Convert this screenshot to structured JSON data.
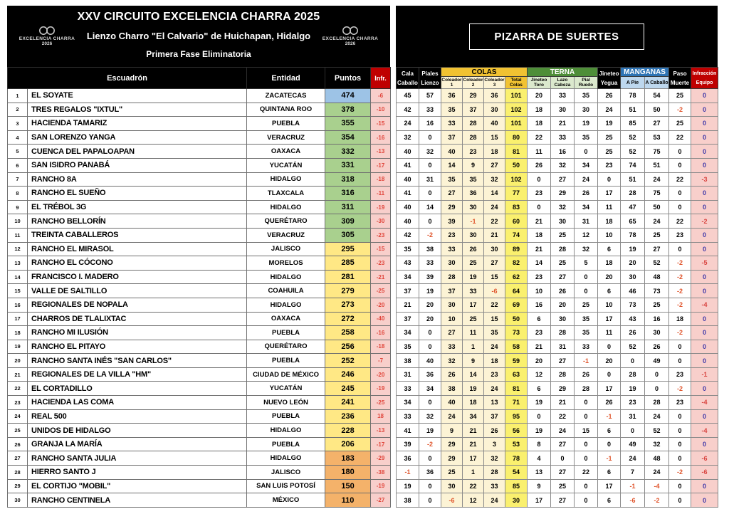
{
  "left_panel": {
    "title": "XXV CIRCUITO EXCELENCIA CHARRA 2025",
    "venue": "Lienzo Charro \"El Calvario\" de Huichapan, Hidalgo",
    "phase": "Primera Fase Eliminatoria",
    "logo": {
      "name": "EXCELENCIA CHARRA",
      "year": "2026"
    },
    "columns": {
      "squad": "Escuadrón",
      "state": "Entidad",
      "points": "Puntos",
      "infraction": "Infr."
    },
    "rows": [
      {
        "rank": 1,
        "squad": "EL SOYATE",
        "state": "ZACATECAS",
        "points": 474,
        "infr": "-6",
        "tier": "blue"
      },
      {
        "rank": 2,
        "squad": "TRES REGALOS \"IXTUL\"",
        "state": "QUINTANA ROO",
        "points": 378,
        "infr": "-10",
        "tier": "green"
      },
      {
        "rank": 3,
        "squad": "HACIENDA TAMARIZ",
        "state": "PUEBLA",
        "points": 355,
        "infr": "-15",
        "tier": "green"
      },
      {
        "rank": 4,
        "squad": "SAN LORENZO YANGA",
        "state": "VERACRUZ",
        "points": 354,
        "infr": "-16",
        "tier": "green"
      },
      {
        "rank": 5,
        "squad": "CUENCA DEL PAPALOAPAN",
        "state": "OAXACA",
        "points": 332,
        "infr": "-13",
        "tier": "green"
      },
      {
        "rank": 6,
        "squad": "SAN ISIDRO PANABÁ",
        "state": "YUCATÁN",
        "points": 331,
        "infr": "-17",
        "tier": "green"
      },
      {
        "rank": 7,
        "squad": "RANCHO 8A",
        "state": "HIDALGO",
        "points": 318,
        "infr": "-18",
        "tier": "green"
      },
      {
        "rank": 8,
        "squad": "RANCHO EL SUEÑO",
        "state": "TLAXCALA",
        "points": 316,
        "infr": "-11",
        "tier": "green"
      },
      {
        "rank": 9,
        "squad": "EL TRÉBOL 3G",
        "state": "HIDALGO",
        "points": 311,
        "infr": "-19",
        "tier": "green"
      },
      {
        "rank": 10,
        "squad": "RANCHO BELLORÍN",
        "state": "QUERÉTARO",
        "points": 309,
        "infr": "-30",
        "tier": "green"
      },
      {
        "rank": 11,
        "squad": "TREINTA CABALLEROS",
        "state": "VERACRUZ",
        "points": 305,
        "infr": "-23",
        "tier": "green"
      },
      {
        "rank": 12,
        "squad": "RANCHO EL MIRASOL",
        "state": "JALISCO",
        "points": 295,
        "infr": "-15",
        "tier": "yellow"
      },
      {
        "rank": 13,
        "squad": "RANCHO EL CÓCONO",
        "state": "MORELOS",
        "points": 285,
        "infr": "-23",
        "tier": "yellow"
      },
      {
        "rank": 14,
        "squad": "FRANCISCO I. MADERO",
        "state": "HIDALGO",
        "points": 281,
        "infr": "-21",
        "tier": "yellow"
      },
      {
        "rank": 15,
        "squad": "VALLE DE SALTILLO",
        "state": "COAHUILA",
        "points": 279,
        "infr": "-25",
        "tier": "yellow"
      },
      {
        "rank": 16,
        "squad": "REGIONALES DE NOPALA",
        "state": "HIDALGO",
        "points": 273,
        "infr": "-20",
        "tier": "yellow"
      },
      {
        "rank": 17,
        "squad": "CHARROS DE TLALIXTAC",
        "state": "OAXACA",
        "points": 272,
        "infr": "-40",
        "tier": "yellow"
      },
      {
        "rank": 18,
        "squad": "RANCHO MI ILUSIÓN",
        "state": "PUEBLA",
        "points": 258,
        "infr": "-16",
        "tier": "yellow"
      },
      {
        "rank": 19,
        "squad": "RANCHO EL PITAYO",
        "state": "QUERÉTARO",
        "points": 256,
        "infr": "-18",
        "tier": "yellow"
      },
      {
        "rank": 20,
        "squad": "RANCHO SANTA INÉS \"SAN CARLOS\"",
        "state": "PUEBLA",
        "points": 252,
        "infr": "-7",
        "tier": "yellow"
      },
      {
        "rank": 21,
        "squad": "REGIONALES DE LA VILLA \"HM\"",
        "state": "CIUDAD DE MÉXICO",
        "points": 246,
        "infr": "-20",
        "tier": "yellow"
      },
      {
        "rank": 22,
        "squad": "EL CORTADILLO",
        "state": "YUCATÁN",
        "points": 245,
        "infr": "-19",
        "tier": "yellow"
      },
      {
        "rank": 23,
        "squad": "HACIENDA LAS COMA",
        "state": "NUEVO LEÓN",
        "points": 241,
        "infr": "-25",
        "tier": "yellow"
      },
      {
        "rank": 24,
        "squad": "REAL 500",
        "state": "PUEBLA",
        "points": 236,
        "infr": "18",
        "tier": "yellow"
      },
      {
        "rank": 25,
        "squad": "UNIDOS DE HIDALGO",
        "state": "HIDALGO",
        "points": 228,
        "infr": "-13",
        "tier": "yellow"
      },
      {
        "rank": 26,
        "squad": "GRANJA LA MARÍA",
        "state": "PUEBLA",
        "points": 206,
        "infr": "-17",
        "tier": "yellow"
      },
      {
        "rank": 27,
        "squad": "RANCHO SANTA JULIA",
        "state": "HIDALGO",
        "points": 183,
        "infr": "-29",
        "tier": "orange"
      },
      {
        "rank": 28,
        "squad": "HIERRO SANTO J",
        "state": "JALISCO",
        "points": 180,
        "infr": "-38",
        "tier": "orange"
      },
      {
        "rank": 29,
        "squad": "EL CORTIJO \"MOBIL\"",
        "state": "SAN LUIS POTOSÍ",
        "points": 150,
        "infr": "-19",
        "tier": "orange"
      },
      {
        "rank": 30,
        "squad": "RANCHO CENTINELA",
        "state": "MÉXICO",
        "points": 110,
        "infr": "-27",
        "tier": "orange"
      }
    ]
  },
  "right_panel": {
    "title": "PIZARRA DE SUERTES",
    "header": {
      "cala": [
        "Cala",
        "Caballo"
      ],
      "piales": [
        "Piales",
        "Lienzo"
      ],
      "colas": {
        "label": "COLAS",
        "sub1": "Coleador 1",
        "sub2": "Coleador 2",
        "sub3": "Coleador 3",
        "total": [
          "Total",
          "Colas"
        ]
      },
      "terna": {
        "label": "TERNA",
        "sub1": [
          "Jineteo",
          "Toro"
        ],
        "sub2": [
          "Lazo",
          "Cabeza"
        ],
        "sub3": [
          "Pial",
          "Ruedo"
        ]
      },
      "jineteo": [
        "Jineteo",
        "Yegua"
      ],
      "manganas": {
        "label": "MANGANAS",
        "sub1": "A Pie",
        "sub2": "A Caballo"
      },
      "paso": [
        "Paso",
        "Muerte"
      ],
      "infraccion": [
        "Infracción",
        "Equipo"
      ]
    },
    "rows": [
      [
        45,
        57,
        36,
        29,
        36,
        101,
        20,
        33,
        35,
        26,
        78,
        54,
        25,
        0
      ],
      [
        42,
        33,
        35,
        37,
        30,
        102,
        18,
        30,
        30,
        24,
        51,
        50,
        -2,
        0
      ],
      [
        24,
        16,
        33,
        28,
        40,
        101,
        18,
        21,
        19,
        19,
        85,
        27,
        25,
        0
      ],
      [
        32,
        0,
        37,
        28,
        15,
        80,
        22,
        33,
        35,
        25,
        52,
        53,
        22,
        0
      ],
      [
        40,
        32,
        40,
        23,
        18,
        81,
        11,
        16,
        0,
        25,
        52,
        75,
        0,
        0
      ],
      [
        41,
        0,
        14,
        9,
        27,
        50,
        26,
        32,
        34,
        23,
        74,
        51,
        0,
        0
      ],
      [
        40,
        31,
        35,
        35,
        32,
        102,
        0,
        27,
        24,
        0,
        51,
        24,
        22,
        -3
      ],
      [
        41,
        0,
        27,
        36,
        14,
        77,
        23,
        29,
        26,
        17,
        28,
        75,
        0,
        0
      ],
      [
        40,
        14,
        29,
        30,
        24,
        83,
        0,
        32,
        34,
        11,
        47,
        50,
        0,
        0
      ],
      [
        40,
        0,
        39,
        -1,
        22,
        60,
        21,
        30,
        31,
        18,
        65,
        24,
        22,
        -2
      ],
      [
        42,
        -2,
        23,
        30,
        21,
        74,
        18,
        25,
        12,
        10,
        78,
        25,
        23,
        0
      ],
      [
        35,
        38,
        33,
        26,
        30,
        89,
        21,
        28,
        32,
        6,
        19,
        27,
        0,
        0
      ],
      [
        43,
        33,
        30,
        25,
        27,
        82,
        14,
        25,
        5,
        18,
        20,
        52,
        -2,
        -5
      ],
      [
        34,
        39,
        28,
        19,
        15,
        62,
        23,
        27,
        0,
        20,
        30,
        48,
        -2,
        0
      ],
      [
        37,
        19,
        37,
        33,
        -6,
        64,
        10,
        26,
        0,
        6,
        46,
        73,
        -2,
        0
      ],
      [
        21,
        20,
        30,
        17,
        22,
        69,
        16,
        20,
        25,
        10,
        73,
        25,
        -2,
        -4
      ],
      [
        37,
        20,
        10,
        25,
        15,
        50,
        6,
        30,
        35,
        17,
        43,
        16,
        18,
        0
      ],
      [
        34,
        0,
        27,
        11,
        35,
        73,
        23,
        28,
        35,
        11,
        26,
        30,
        -2,
        0
      ],
      [
        35,
        0,
        33,
        1,
        24,
        58,
        21,
        31,
        33,
        0,
        52,
        26,
        0,
        0
      ],
      [
        38,
        40,
        32,
        9,
        18,
        59,
        20,
        27,
        -1,
        20,
        0,
        49,
        0,
        0
      ],
      [
        31,
        36,
        26,
        14,
        23,
        63,
        12,
        28,
        26,
        0,
        28,
        0,
        23,
        -1
      ],
      [
        33,
        34,
        38,
        19,
        24,
        81,
        6,
        29,
        28,
        17,
        19,
        0,
        -2,
        0
      ],
      [
        34,
        0,
        40,
        18,
        13,
        71,
        19,
        21,
        0,
        26,
        23,
        28,
        23,
        -4
      ],
      [
        33,
        32,
        24,
        34,
        37,
        95,
        0,
        22,
        0,
        -1,
        31,
        24,
        0,
        0
      ],
      [
        41,
        19,
        9,
        21,
        26,
        56,
        19,
        24,
        15,
        6,
        0,
        52,
        0,
        -4
      ],
      [
        39,
        -2,
        29,
        21,
        3,
        53,
        8,
        27,
        0,
        0,
        49,
        32,
        0,
        0
      ],
      [
        36,
        0,
        29,
        17,
        32,
        78,
        4,
        0,
        0,
        -1,
        24,
        48,
        0,
        -6
      ],
      [
        -1,
        36,
        25,
        1,
        28,
        54,
        13,
        27,
        22,
        6,
        7,
        24,
        -2,
        -6
      ],
      [
        19,
        0,
        30,
        22,
        33,
        85,
        9,
        25,
        0,
        17,
        -1,
        -4,
        0,
        0
      ],
      [
        38,
        0,
        -6,
        12,
        24,
        30,
        17,
        27,
        0,
        6,
        -6,
        -2,
        0,
        0
      ]
    ]
  },
  "colors": {
    "header_black": "#000000",
    "infraction_red": "#bf0000",
    "points_blue": "#9dc3e6",
    "points_green": "#a9d08e",
    "points_yellow": "#ffe885",
    "points_orange": "#f4b26a",
    "colas_gold": "#f1c232",
    "colas_cream": "#fcf3d5",
    "total_colas_yellow": "#faf06e",
    "terna_green": "#4e8e38",
    "terna_pale_green": "#dbe9cd",
    "manganas_blue": "#2e74b5",
    "manganas_light_blue": "#bdd7ee",
    "pink_cell": "#f8cfcb",
    "negative_text": "#e0552c",
    "zero_pink_text": "#4038a8"
  }
}
